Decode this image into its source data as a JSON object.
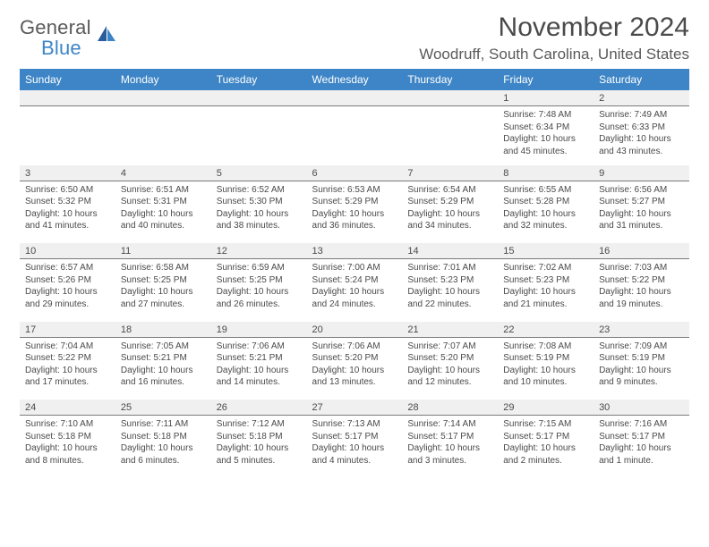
{
  "logo": {
    "text1": "General",
    "text2": "Blue"
  },
  "title": "November 2024",
  "location": "Woodruff, South Carolina, United States",
  "colors": {
    "header_bg": "#3d85c6",
    "header_fg": "#ffffff",
    "daynum_bg": "#f0f0f0",
    "rule": "#7a7a7a",
    "text": "#4a4a4a",
    "logo_gray": "#5a5a5a",
    "logo_blue": "#3d85c6"
  },
  "daysOfWeek": [
    "Sunday",
    "Monday",
    "Tuesday",
    "Wednesday",
    "Thursday",
    "Friday",
    "Saturday"
  ],
  "weeks": [
    [
      null,
      null,
      null,
      null,
      null,
      {
        "n": "1",
        "sunrise": "7:48 AM",
        "sunset": "6:34 PM",
        "daylight": "10 hours and 45 minutes."
      },
      {
        "n": "2",
        "sunrise": "7:49 AM",
        "sunset": "6:33 PM",
        "daylight": "10 hours and 43 minutes."
      }
    ],
    [
      {
        "n": "3",
        "sunrise": "6:50 AM",
        "sunset": "5:32 PM",
        "daylight": "10 hours and 41 minutes."
      },
      {
        "n": "4",
        "sunrise": "6:51 AM",
        "sunset": "5:31 PM",
        "daylight": "10 hours and 40 minutes."
      },
      {
        "n": "5",
        "sunrise": "6:52 AM",
        "sunset": "5:30 PM",
        "daylight": "10 hours and 38 minutes."
      },
      {
        "n": "6",
        "sunrise": "6:53 AM",
        "sunset": "5:29 PM",
        "daylight": "10 hours and 36 minutes."
      },
      {
        "n": "7",
        "sunrise": "6:54 AM",
        "sunset": "5:29 PM",
        "daylight": "10 hours and 34 minutes."
      },
      {
        "n": "8",
        "sunrise": "6:55 AM",
        "sunset": "5:28 PM",
        "daylight": "10 hours and 32 minutes."
      },
      {
        "n": "9",
        "sunrise": "6:56 AM",
        "sunset": "5:27 PM",
        "daylight": "10 hours and 31 minutes."
      }
    ],
    [
      {
        "n": "10",
        "sunrise": "6:57 AM",
        "sunset": "5:26 PM",
        "daylight": "10 hours and 29 minutes."
      },
      {
        "n": "11",
        "sunrise": "6:58 AM",
        "sunset": "5:25 PM",
        "daylight": "10 hours and 27 minutes."
      },
      {
        "n": "12",
        "sunrise": "6:59 AM",
        "sunset": "5:25 PM",
        "daylight": "10 hours and 26 minutes."
      },
      {
        "n": "13",
        "sunrise": "7:00 AM",
        "sunset": "5:24 PM",
        "daylight": "10 hours and 24 minutes."
      },
      {
        "n": "14",
        "sunrise": "7:01 AM",
        "sunset": "5:23 PM",
        "daylight": "10 hours and 22 minutes."
      },
      {
        "n": "15",
        "sunrise": "7:02 AM",
        "sunset": "5:23 PM",
        "daylight": "10 hours and 21 minutes."
      },
      {
        "n": "16",
        "sunrise": "7:03 AM",
        "sunset": "5:22 PM",
        "daylight": "10 hours and 19 minutes."
      }
    ],
    [
      {
        "n": "17",
        "sunrise": "7:04 AM",
        "sunset": "5:22 PM",
        "daylight": "10 hours and 17 minutes."
      },
      {
        "n": "18",
        "sunrise": "7:05 AM",
        "sunset": "5:21 PM",
        "daylight": "10 hours and 16 minutes."
      },
      {
        "n": "19",
        "sunrise": "7:06 AM",
        "sunset": "5:21 PM",
        "daylight": "10 hours and 14 minutes."
      },
      {
        "n": "20",
        "sunrise": "7:06 AM",
        "sunset": "5:20 PM",
        "daylight": "10 hours and 13 minutes."
      },
      {
        "n": "21",
        "sunrise": "7:07 AM",
        "sunset": "5:20 PM",
        "daylight": "10 hours and 12 minutes."
      },
      {
        "n": "22",
        "sunrise": "7:08 AM",
        "sunset": "5:19 PM",
        "daylight": "10 hours and 10 minutes."
      },
      {
        "n": "23",
        "sunrise": "7:09 AM",
        "sunset": "5:19 PM",
        "daylight": "10 hours and 9 minutes."
      }
    ],
    [
      {
        "n": "24",
        "sunrise": "7:10 AM",
        "sunset": "5:18 PM",
        "daylight": "10 hours and 8 minutes."
      },
      {
        "n": "25",
        "sunrise": "7:11 AM",
        "sunset": "5:18 PM",
        "daylight": "10 hours and 6 minutes."
      },
      {
        "n": "26",
        "sunrise": "7:12 AM",
        "sunset": "5:18 PM",
        "daylight": "10 hours and 5 minutes."
      },
      {
        "n": "27",
        "sunrise": "7:13 AM",
        "sunset": "5:17 PM",
        "daylight": "10 hours and 4 minutes."
      },
      {
        "n": "28",
        "sunrise": "7:14 AM",
        "sunset": "5:17 PM",
        "daylight": "10 hours and 3 minutes."
      },
      {
        "n": "29",
        "sunrise": "7:15 AM",
        "sunset": "5:17 PM",
        "daylight": "10 hours and 2 minutes."
      },
      {
        "n": "30",
        "sunrise": "7:16 AM",
        "sunset": "5:17 PM",
        "daylight": "10 hours and 1 minute."
      }
    ]
  ],
  "labels": {
    "sunrise": "Sunrise: ",
    "sunset": "Sunset: ",
    "daylight": "Daylight: "
  }
}
